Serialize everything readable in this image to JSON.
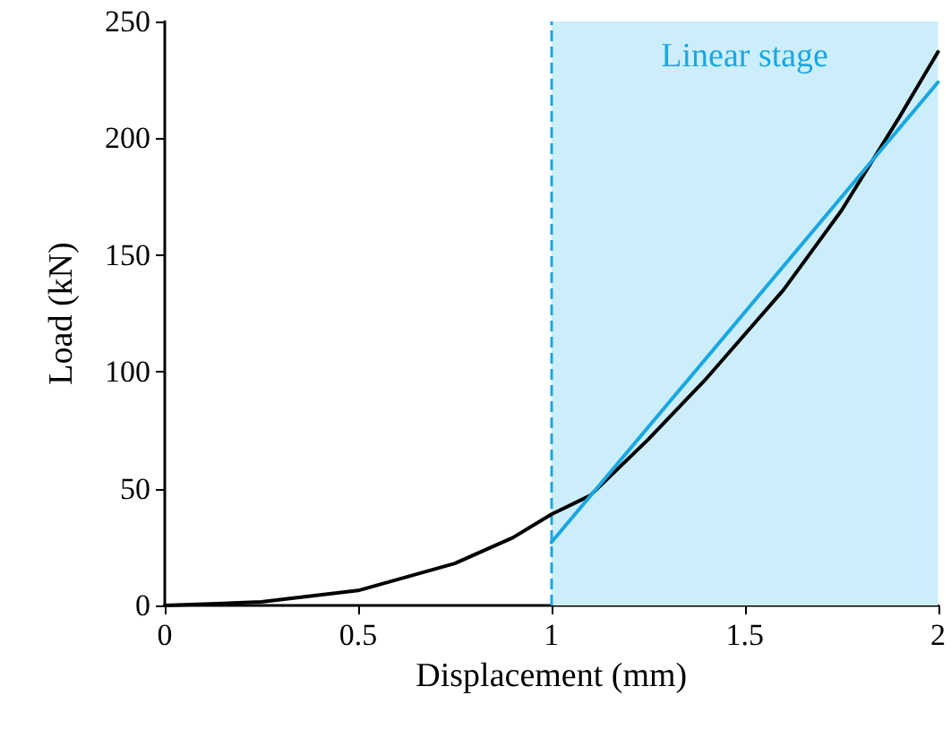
{
  "chart_data": {
    "type": "line",
    "xlabel": "Displacement (mm)",
    "ylabel": "Load (kN)",
    "series": [
      {
        "color": "#000000",
        "x": [
          0,
          0.25,
          0.5,
          0.75,
          0.9,
          1.0,
          1.1,
          1.25,
          1.4,
          1.5,
          1.6,
          1.75,
          1.9,
          2.0
        ],
        "values": [
          0,
          1.5,
          6.4,
          18,
          29,
          39,
          47,
          71,
          97,
          116,
          135,
          169,
          209,
          237
        ]
      },
      {
        "color": "#1aa7e0",
        "x": [
          1,
          2
        ],
        "values": [
          27,
          224
        ]
      }
    ],
    "xlim": [
      0,
      2
    ],
    "xticks": [
      0,
      0.5,
      1,
      1.5,
      2
    ],
    "ylim": [
      0,
      250
    ],
    "yticks": [
      0,
      50,
      100,
      150,
      200,
      250
    ],
    "grid": false,
    "marker": "none",
    "line_style": "solid",
    "ref_lines": [
      {
        "axis": "x",
        "value": 1,
        "color": "#1aa7e0",
        "line_style": "dashed"
      }
    ],
    "bands": [
      {
        "axis": "x",
        "from": 1,
        "to": 2,
        "label": "Linear stage",
        "color": "#cceefa"
      }
    ]
  }
}
